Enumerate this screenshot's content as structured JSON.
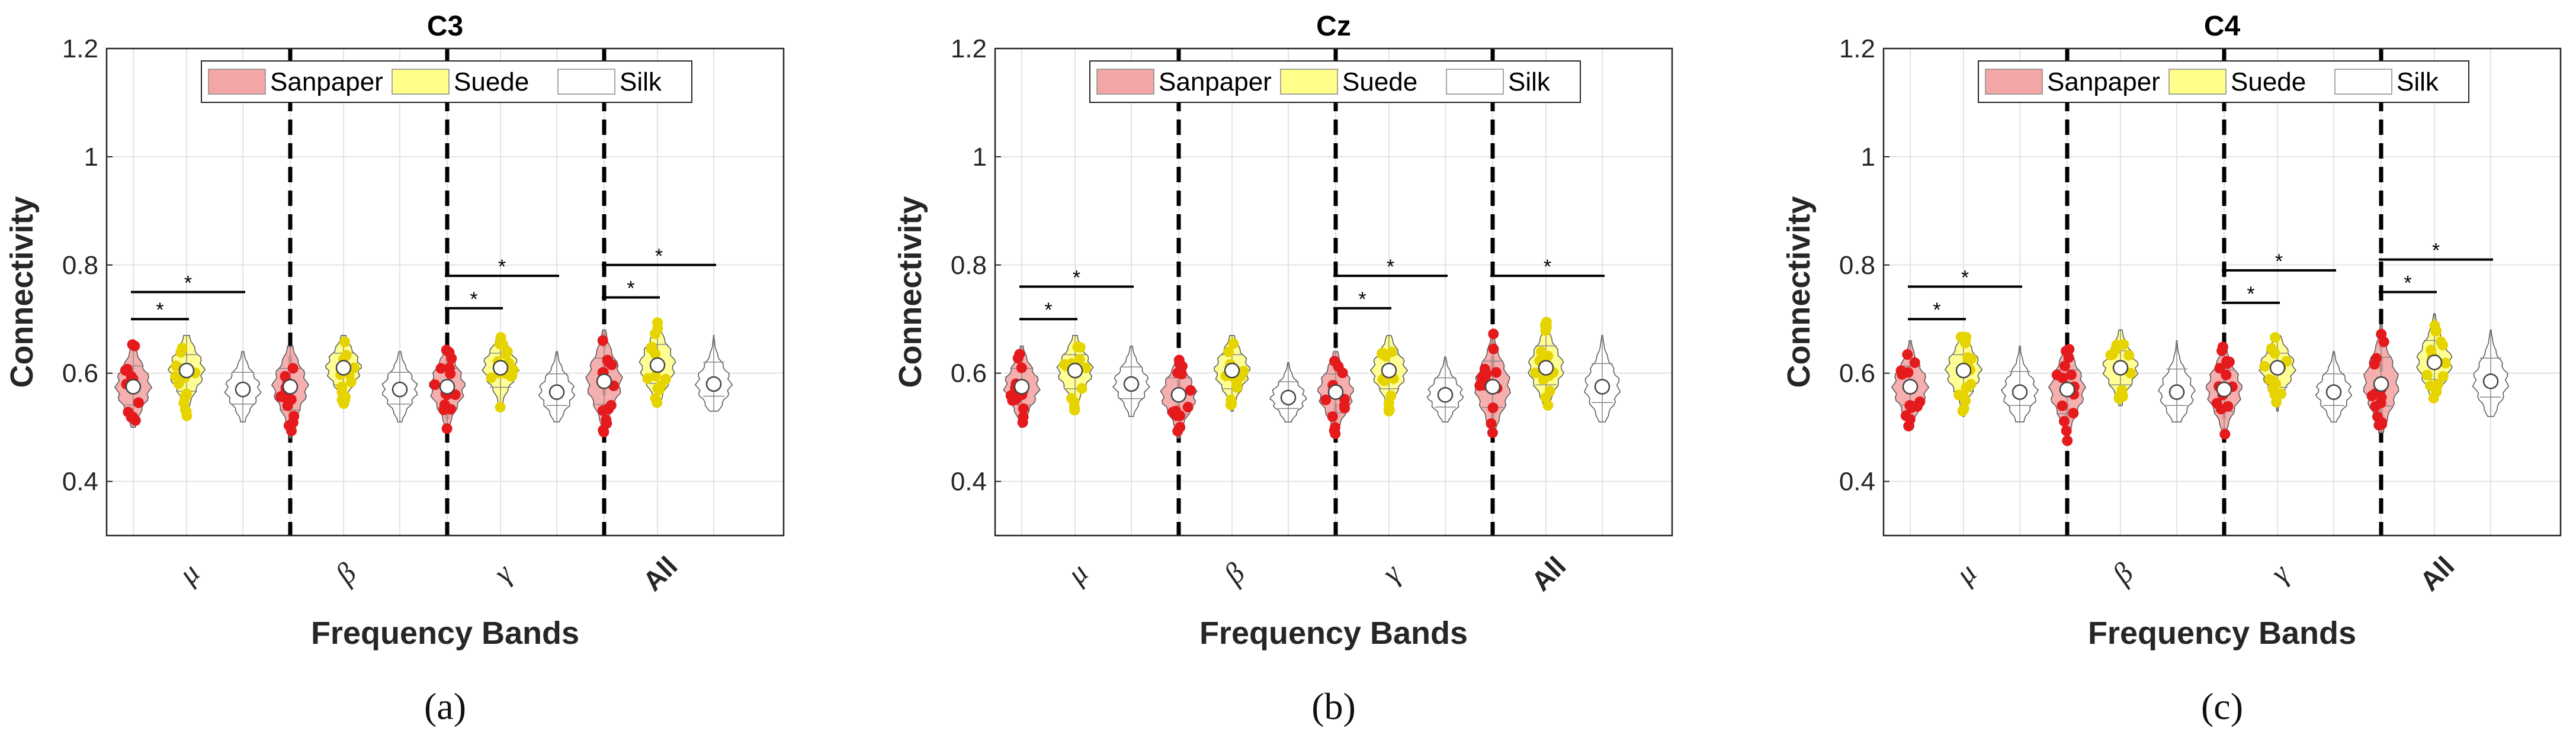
{
  "legend": {
    "items": [
      {
        "label": "Sanpaper",
        "fill": "#f4a6a6",
        "point": "#e41a1c"
      },
      {
        "label": "Suede",
        "fill": "#ffff8a",
        "point": "#e6d400"
      },
      {
        "label": "Silk",
        "fill": "#ffffff",
        "point": "#ffffff"
      }
    ]
  },
  "chart_data": [
    {
      "type": "violin",
      "caption": "(a)",
      "title": "C3",
      "xlabel": "Frequency Bands",
      "ylabel": "Connectivity",
      "ylim": [
        0.3,
        1.2
      ],
      "yticks": [
        "0.4",
        "0.6",
        "0.8",
        "1",
        "1.2"
      ],
      "categories": [
        "μ",
        "β",
        "γ",
        "All"
      ],
      "grid": true,
      "series": [
        {
          "name": "Sanpaper",
          "median": [
            0.575,
            0.575,
            0.575,
            0.585
          ],
          "min": [
            0.5,
            0.48,
            0.49,
            0.49
          ],
          "max": [
            0.66,
            0.65,
            0.65,
            0.68
          ]
        },
        {
          "name": "Suede",
          "median": [
            0.605,
            0.61,
            0.61,
            0.615
          ],
          "min": [
            0.52,
            0.54,
            0.53,
            0.54
          ],
          "max": [
            0.67,
            0.67,
            0.67,
            0.7
          ]
        },
        {
          "name": "Silk",
          "median": [
            0.57,
            0.57,
            0.565,
            0.58
          ],
          "min": [
            0.51,
            0.51,
            0.51,
            0.53
          ],
          "max": [
            0.64,
            0.64,
            0.64,
            0.67
          ]
        }
      ],
      "significance": [
        {
          "band": "μ",
          "pair": [
            "Sanpaper",
            "Suede"
          ],
          "y": 0.7,
          "label": "*"
        },
        {
          "band": "μ",
          "pair": [
            "Sanpaper",
            "Silk"
          ],
          "y": 0.75,
          "label": "*"
        },
        {
          "band": "γ",
          "pair": [
            "Sanpaper",
            "Suede"
          ],
          "y": 0.72,
          "label": "*"
        },
        {
          "band": "γ",
          "pair": [
            "Sanpaper",
            "Silk"
          ],
          "y": 0.78,
          "label": "*"
        },
        {
          "band": "All",
          "pair": [
            "Sanpaper",
            "Suede"
          ],
          "y": 0.74,
          "label": "*"
        },
        {
          "band": "All",
          "pair": [
            "Sanpaper",
            "Silk"
          ],
          "y": 0.8,
          "label": "*"
        }
      ]
    },
    {
      "type": "violin",
      "caption": "(b)",
      "title": "Cz",
      "xlabel": "Frequency Bands",
      "ylabel": "Connectivity",
      "ylim": [
        0.3,
        1.2
      ],
      "yticks": [
        "0.4",
        "0.6",
        "0.8",
        "1",
        "1.2"
      ],
      "categories": [
        "μ",
        "β",
        "γ",
        "All"
      ],
      "grid": true,
      "series": [
        {
          "name": "Sanpaper",
          "median": [
            0.575,
            0.56,
            0.565,
            0.575
          ],
          "min": [
            0.5,
            0.48,
            0.48,
            0.49
          ],
          "max": [
            0.65,
            0.63,
            0.64,
            0.68
          ]
        },
        {
          "name": "Suede",
          "median": [
            0.605,
            0.605,
            0.605,
            0.61
          ],
          "min": [
            0.53,
            0.53,
            0.53,
            0.54
          ],
          "max": [
            0.67,
            0.67,
            0.67,
            0.7
          ]
        },
        {
          "name": "Silk",
          "median": [
            0.58,
            0.555,
            0.56,
            0.575
          ],
          "min": [
            0.52,
            0.51,
            0.51,
            0.51
          ],
          "max": [
            0.65,
            0.62,
            0.63,
            0.67
          ]
        }
      ],
      "significance": [
        {
          "band": "μ",
          "pair": [
            "Sanpaper",
            "Suede"
          ],
          "y": 0.7,
          "label": "*"
        },
        {
          "band": "μ",
          "pair": [
            "Sanpaper",
            "Silk"
          ],
          "y": 0.76,
          "label": "*"
        },
        {
          "band": "γ",
          "pair": [
            "Sanpaper",
            "Suede"
          ],
          "y": 0.72,
          "label": "*"
        },
        {
          "band": "γ",
          "pair": [
            "Sanpaper",
            "Silk"
          ],
          "y": 0.78,
          "label": "*"
        },
        {
          "band": "All",
          "pair": [
            "Sanpaper",
            "Silk"
          ],
          "y": 0.78,
          "label": "*"
        }
      ]
    },
    {
      "type": "violin",
      "caption": "(c)",
      "title": "C4",
      "xlabel": "Frequency Bands",
      "ylabel": "Connectivity",
      "ylim": [
        0.3,
        1.2
      ],
      "yticks": [
        "0.4",
        "0.6",
        "0.8",
        "1",
        "1.2"
      ],
      "categories": [
        "μ",
        "β",
        "γ",
        "All"
      ],
      "grid": true,
      "series": [
        {
          "name": "Sanpaper",
          "median": [
            0.575,
            0.57,
            0.57,
            0.58
          ],
          "min": [
            0.5,
            0.47,
            0.48,
            0.49
          ],
          "max": [
            0.66,
            0.65,
            0.65,
            0.69
          ]
        },
        {
          "name": "Suede",
          "median": [
            0.605,
            0.61,
            0.61,
            0.62
          ],
          "min": [
            0.52,
            0.54,
            0.53,
            0.55
          ],
          "max": [
            0.67,
            0.68,
            0.67,
            0.71
          ]
        },
        {
          "name": "Silk",
          "median": [
            0.565,
            0.565,
            0.565,
            0.585
          ],
          "min": [
            0.51,
            0.51,
            0.51,
            0.52
          ],
          "max": [
            0.65,
            0.66,
            0.64,
            0.68
          ]
        }
      ],
      "significance": [
        {
          "band": "μ",
          "pair": [
            "Sanpaper",
            "Suede"
          ],
          "y": 0.7,
          "label": "*"
        },
        {
          "band": "μ",
          "pair": [
            "Sanpaper",
            "Silk"
          ],
          "y": 0.76,
          "label": "*"
        },
        {
          "band": "γ",
          "pair": [
            "Sanpaper",
            "Suede"
          ],
          "y": 0.73,
          "label": "*"
        },
        {
          "band": "γ",
          "pair": [
            "Sanpaper",
            "Silk"
          ],
          "y": 0.79,
          "label": "*"
        },
        {
          "band": "All",
          "pair": [
            "Sanpaper",
            "Suede"
          ],
          "y": 0.75,
          "label": "*"
        },
        {
          "band": "All",
          "pair": [
            "Sanpaper",
            "Silk"
          ],
          "y": 0.81,
          "label": "*"
        }
      ]
    }
  ]
}
